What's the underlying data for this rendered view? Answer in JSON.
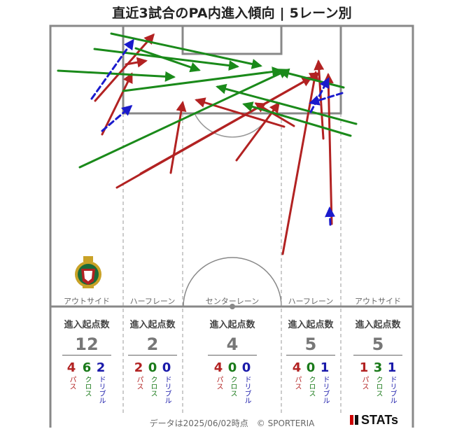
{
  "title": "直近3試合のPA内進入傾向 | 5レーン別",
  "lanes": [
    {
      "name": "アウトサイド",
      "count_label": "進入起点数",
      "total": "12",
      "breakdown": [
        {
          "num": "4",
          "label": "パス",
          "color": "#b22222"
        },
        {
          "num": "6",
          "label": "クロス",
          "color": "#1a7a1a"
        },
        {
          "num": "2",
          "label": "ドリブル",
          "color": "#1a1aaa"
        }
      ]
    },
    {
      "name": "ハーフレーン",
      "count_label": "進入起点数",
      "total": "2",
      "breakdown": [
        {
          "num": "2",
          "label": "パス",
          "color": "#b22222"
        },
        {
          "num": "0",
          "label": "クロス",
          "color": "#1a7a1a"
        },
        {
          "num": "0",
          "label": "ドリブル",
          "color": "#1a1aaa"
        }
      ]
    },
    {
      "name": "センターレーン",
      "count_label": "進入起点数",
      "total": "4",
      "breakdown": [
        {
          "num": "4",
          "label": "パス",
          "color": "#b22222"
        },
        {
          "num": "0",
          "label": "クロス",
          "color": "#1a7a1a"
        },
        {
          "num": "0",
          "label": "ドリブル",
          "color": "#1a1aaa"
        }
      ]
    },
    {
      "name": "ハーフレーン",
      "count_label": "進入起点数",
      "total": "5",
      "breakdown": [
        {
          "num": "4",
          "label": "パス",
          "color": "#b22222"
        },
        {
          "num": "0",
          "label": "クロス",
          "color": "#1a7a1a"
        },
        {
          "num": "1",
          "label": "ドリブル",
          "color": "#1a1aaa"
        }
      ]
    },
    {
      "name": "アウトサイド",
      "count_label": "進入起点数",
      "total": "5",
      "breakdown": [
        {
          "num": "1",
          "label": "パス",
          "color": "#b22222"
        },
        {
          "num": "3",
          "label": "クロス",
          "color": "#1a7a1a"
        },
        {
          "num": "1",
          "label": "ドリブル",
          "color": "#1a1aaa"
        }
      ]
    }
  ],
  "footer": "データは2025/06/02時点　© SPORTERIA",
  "brand": "STATs",
  "colors": {
    "pass": "#b22222",
    "cross": "#1a8a1a",
    "dribble": "#1a1acc",
    "pitch_line": "#888888"
  },
  "chart_data": {
    "type": "scatter",
    "title": "直近3試合のPA内進入傾向 | 5レーン別",
    "categories": [
      "アウトサイド",
      "ハーフレーン",
      "センターレーン",
      "ハーフレーン",
      "アウトサイド"
    ],
    "series": [
      {
        "name": "パス",
        "values": [
          4,
          2,
          4,
          4,
          1
        ]
      },
      {
        "name": "クロス",
        "values": [
          6,
          0,
          0,
          0,
          3
        ]
      },
      {
        "name": "ドリブル",
        "values": [
          2,
          0,
          0,
          1,
          1
        ]
      }
    ],
    "arrows": [
      {
        "kind": "pass",
        "from": [
          136,
          144
        ],
        "to": [
          219,
          50
        ]
      },
      {
        "kind": "pass",
        "from": [
          180,
          92
        ],
        "to": [
          208,
          87
        ]
      },
      {
        "kind": "pass",
        "from": [
          146,
          192
        ],
        "to": [
          188,
          106
        ]
      },
      {
        "kind": "pass",
        "from": [
          167,
          268
        ],
        "to": [
          455,
          105
        ]
      },
      {
        "kind": "pass",
        "from": [
          201,
          248
        ],
        "to": [
          444,
          111
        ]
      },
      {
        "kind": "pass",
        "from": [
          244,
          247
        ],
        "to": [
          261,
          147
        ]
      },
      {
        "kind": "pass",
        "from": [
          338,
          229
        ],
        "to": [
          398,
          148
        ]
      },
      {
        "kind": "pass",
        "from": [
          420,
          180
        ],
        "to": [
          366,
          148
        ]
      },
      {
        "kind": "pass",
        "from": [
          406,
          181
        ],
        "to": [
          281,
          143
        ]
      },
      {
        "kind": "pass",
        "from": [
          462,
          198
        ],
        "to": [
          455,
          88
        ]
      },
      {
        "kind": "pass",
        "from": [
          404,
          363
        ],
        "to": [
          451,
          104
        ]
      },
      {
        "kind": "pass",
        "from": [
          474,
          320
        ],
        "to": [
          469,
          107
        ]
      },
      {
        "kind": "cross",
        "from": [
          159,
          48
        ],
        "to": [
          372,
          94
        ]
      },
      {
        "kind": "cross",
        "from": [
          135,
          70
        ],
        "to": [
          339,
          95
        ]
      },
      {
        "kind": "cross",
        "from": [
          83,
          101
        ],
        "to": [
          248,
          110
        ]
      },
      {
        "kind": "cross",
        "from": [
          114,
          239
        ],
        "to": [
          411,
          100
        ]
      },
      {
        "kind": "cross",
        "from": [
          176,
          130
        ],
        "to": [
          401,
          101
        ]
      },
      {
        "kind": "cross",
        "from": [
          194,
          69
        ],
        "to": [
          284,
          100
        ]
      },
      {
        "kind": "cross",
        "from": [
          509,
          177
        ],
        "to": [
          311,
          124
        ]
      },
      {
        "kind": "cross",
        "from": [
          501,
          194
        ],
        "to": [
          349,
          149
        ]
      },
      {
        "kind": "cross",
        "from": [
          491,
          125
        ],
        "to": [
          401,
          102
        ]
      },
      {
        "kind": "dribble",
        "from": [
          131,
          141
        ],
        "to": [
          190,
          58
        ]
      },
      {
        "kind": "dribble",
        "from": [
          146,
          187
        ],
        "to": [
          187,
          152
        ]
      },
      {
        "kind": "dribble",
        "from": [
          489,
          133
        ],
        "to": [
          444,
          147
        ]
      },
      {
        "kind": "dribble",
        "from": [
          444,
          160
        ],
        "to": [
          469,
          113
        ]
      },
      {
        "kind": "dribble",
        "from": [
          472,
          321
        ],
        "to": [
          471,
          298
        ]
      }
    ]
  }
}
